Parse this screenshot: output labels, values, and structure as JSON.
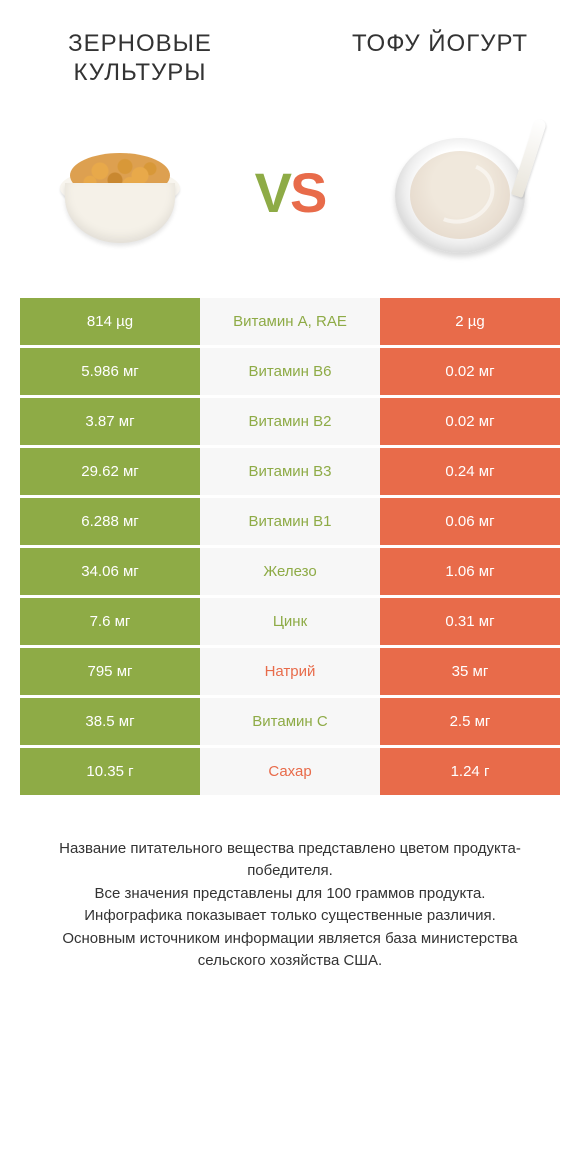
{
  "colors": {
    "left": "#8eab46",
    "right": "#e86b4a",
    "mid_bg": "#f7f7f7"
  },
  "titles": {
    "left": "ЗЕРНОВЫЕ КУЛЬТУРЫ",
    "right": "ТОФУ ЙОГУРТ"
  },
  "vs": {
    "v": "V",
    "s": "S"
  },
  "rows": [
    {
      "left": "814 µg",
      "mid": "Витамин A, RAE",
      "right": "2 µg",
      "winner": "left"
    },
    {
      "left": "5.986 мг",
      "mid": "Витамин B6",
      "right": "0.02 мг",
      "winner": "left"
    },
    {
      "left": "3.87 мг",
      "mid": "Витамин B2",
      "right": "0.02 мг",
      "winner": "left"
    },
    {
      "left": "29.62 мг",
      "mid": "Витамин B3",
      "right": "0.24 мг",
      "winner": "left"
    },
    {
      "left": "6.288 мг",
      "mid": "Витамин B1",
      "right": "0.06 мг",
      "winner": "left"
    },
    {
      "left": "34.06 мг",
      "mid": "Железо",
      "right": "1.06 мг",
      "winner": "left"
    },
    {
      "left": "7.6 мг",
      "mid": "Цинк",
      "right": "0.31 мг",
      "winner": "left"
    },
    {
      "left": "795 мг",
      "mid": "Натрий",
      "right": "35 мг",
      "winner": "right"
    },
    {
      "left": "38.5 мг",
      "mid": "Витамин C",
      "right": "2.5 мг",
      "winner": "left"
    },
    {
      "left": "10.35 г",
      "mid": "Сахар",
      "right": "1.24 г",
      "winner": "right"
    }
  ],
  "footnotes": [
    "Название питательного вещества представлено цветом продукта-победителя.",
    "Все значения представлены для 100 граммов продукта.",
    "Инфографика показывает только существенные различия.",
    "Основным источником информации является база министерства сельского хозяйства США."
  ]
}
